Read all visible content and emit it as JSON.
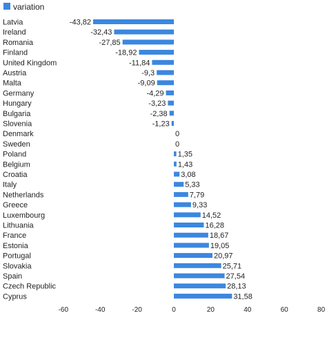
{
  "chart_data": {
    "type": "bar",
    "orientation": "horizontal",
    "legend": {
      "label": "variation",
      "position": "top-left"
    },
    "categories": [
      "Latvia",
      "Ireland",
      "Romania",
      "Finland",
      "United Kingdom",
      "Austria",
      "Malta",
      "Germany",
      "Hungary",
      "Bulgaria",
      "Slovenia",
      "Denmark",
      "Sweden",
      "Poland",
      "Belgium",
      "Croatia",
      "Italy",
      "Netherlands",
      "Greece",
      "Luxembourg",
      "Lithuania",
      "France",
      "Estonia",
      "Portugal",
      "Slovakia",
      "Spain",
      "Czech Republic",
      "Cyprus"
    ],
    "values": [
      -43.82,
      -32.43,
      -27.85,
      -18.92,
      -11.84,
      -9.3,
      -9.09,
      -4.29,
      -3.23,
      -2.38,
      -1.23,
      0,
      0,
      1.35,
      1.43,
      3.08,
      5.33,
      7.79,
      9.33,
      14.52,
      16.28,
      18.67,
      19.05,
      20.97,
      25.71,
      27.54,
      28.13,
      31.58
    ],
    "value_labels": [
      "-43,82",
      "-32,43",
      "-27,85",
      "-18,92",
      "-11,84",
      "-9,3",
      "-9,09",
      "-4,29",
      "-3,23",
      "-2,38",
      "-1,23",
      "0",
      "0",
      "1,35",
      "1,43",
      "3,08",
      "5,33",
      "7,79",
      "9,33",
      "14,52",
      "16,28",
      "18,67",
      "19,05",
      "20,97",
      "25,71",
      "27,54",
      "28,13",
      "31,58"
    ],
    "xlim": [
      -60,
      80
    ],
    "x_ticks": [
      -60,
      -40,
      -20,
      0,
      20,
      40,
      60,
      80
    ],
    "x_tick_labels": [
      "-60",
      "-40",
      "-20",
      "0",
      "20",
      "40",
      "60",
      "80"
    ],
    "color": "#3b87e0",
    "grid": false,
    "title": "",
    "xlabel": "",
    "ylabel": ""
  }
}
